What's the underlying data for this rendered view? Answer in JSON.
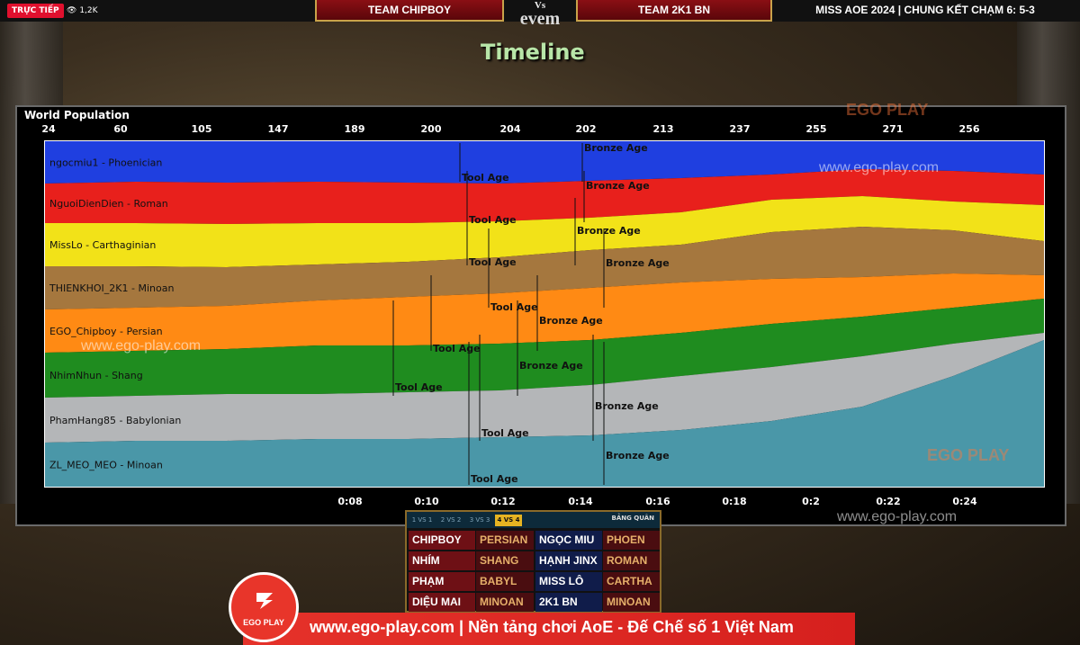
{
  "broadcast": {
    "live_label": "TRỰC TIẾP",
    "viewers": "1,2K",
    "team_left": "TEAM CHIPBOY",
    "vs": "Vs",
    "vs_under": "evem",
    "team_right": "TEAM 2K1 BN",
    "match_title": "MISS AOE 2024 | CHUNG KẾT CHẠM 6: 5-3"
  },
  "screen_title": "Timeline",
  "watermarks": {
    "site": "www.ego-play.com",
    "logo": "EGO PLAY"
  },
  "chart_data": {
    "type": "area",
    "title": "World Population",
    "population_ticks": [
      "24",
      "60",
      "105",
      "147",
      "189",
      "200",
      "204",
      "202",
      "213",
      "237",
      "255",
      "271",
      "256"
    ],
    "time_ticks": [
      "0:08",
      "0:10",
      "0:12",
      "0:14",
      "0:16",
      "0:18",
      "0:2",
      "0:22",
      "0:24"
    ],
    "colors": {
      "band1": "#1f3fe0",
      "band2": "#e8201c",
      "band3": "#f2e218",
      "band4": "#a5773e",
      "band5": "#ff8a14",
      "band6": "#1f8c1f",
      "band7": "#b4b6b8",
      "band8": "#4a97a8"
    },
    "bands": [
      {
        "label": "ngocmiu1 - Phoenician",
        "ages": [
          {
            "label": "Tool Age"
          },
          {
            "label": "Bronze Age"
          }
        ]
      },
      {
        "label": "NguoiDienDien - Roman",
        "ages": [
          {
            "label": "Tool Age"
          },
          {
            "label": "Bronze Age"
          }
        ]
      },
      {
        "label": "MissLo - Carthaginian",
        "ages": [
          {
            "label": "Tool Age"
          },
          {
            "label": "Bronze Age"
          }
        ]
      },
      {
        "label": "THIENKHOI_2K1 - Minoan",
        "ages": [
          {
            "label": "Tool Age"
          },
          {
            "label": "Bronze Age"
          }
        ]
      },
      {
        "label": "EGO_Chipboy - Persian",
        "ages": [
          {
            "label": "Tool Age"
          },
          {
            "label": "Bronze Age"
          }
        ]
      },
      {
        "label": "NhimNhun - Shang",
        "ages": [
          {
            "label": "Tool Age"
          },
          {
            "label": "Bronze Age"
          }
        ]
      },
      {
        "label": "PhamHang85 - Babylonian",
        "ages": [
          {
            "label": "Tool Age"
          },
          {
            "label": "Bronze Age"
          }
        ]
      },
      {
        "label": "ZL_MEO_MEO - Minoan",
        "ages": [
          {
            "label": "Tool Age"
          },
          {
            "label": "Bronze Age"
          }
        ]
      }
    ]
  },
  "scoreboard": {
    "tabs": [
      "1 VS 1",
      "2 VS 2",
      "3 VS 3",
      "4 VS 4"
    ],
    "active_tab": "4 VS 4",
    "title": "BẢNG QUÂN",
    "rows": [
      {
        "left_name": "CHIPBOY",
        "left_civ": "PERSIAN",
        "right_name": "NGỌC MIU",
        "right_civ": "PHOEN"
      },
      {
        "left_name": "NHÍM",
        "left_civ": "SHANG",
        "right_name": "HẠNH JINX",
        "right_civ": "ROMAN"
      },
      {
        "left_name": "PHẠM HẰNG",
        "left_civ": "BABYL",
        "right_name": "MISS LÔ",
        "right_civ": "CARTHA"
      },
      {
        "left_name": "DIỆU MAI",
        "left_civ": "MINOAN",
        "right_name": "2K1 BN",
        "right_civ": "MINOAN"
      }
    ]
  },
  "footer": {
    "logo_text": "EGO PLAY",
    "banner": "www.ego-play.com | Nền tảng chơi AoE - Đế Chế số 1 Việt Nam"
  }
}
